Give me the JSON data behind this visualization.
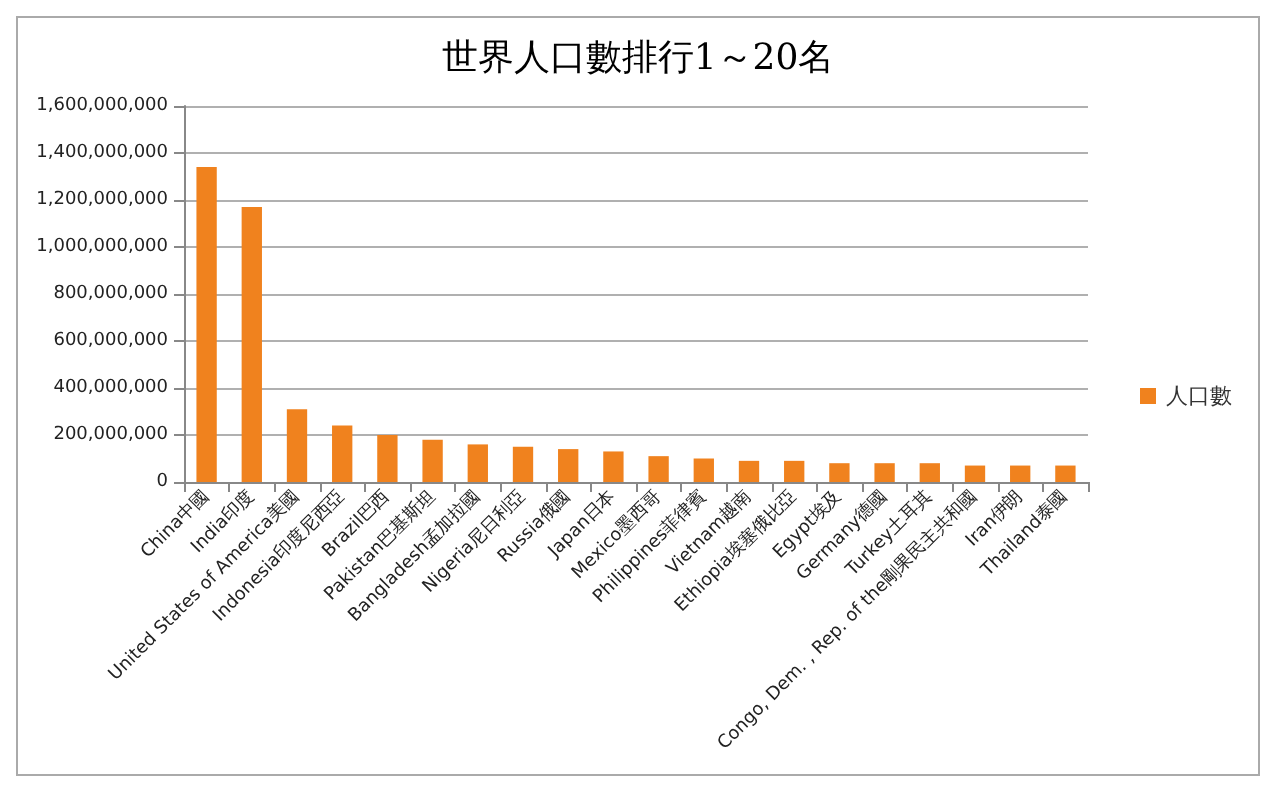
{
  "chart_data": {
    "type": "bar",
    "title": "世界人口數排行1～20名",
    "categories": [
      "China中國",
      "India印度",
      "United States of America美國",
      "Indonesia印度尼西亞",
      "Brazil巴西",
      "Pakistan巴基斯坦",
      "Bangladesh孟加拉國",
      "Nigeria尼日利亞",
      "Russia俄國",
      "Japan日本",
      "Mexico墨西哥",
      "Philippines菲律賓",
      "Vietnam越南",
      "Ethiopia埃塞俄比亞",
      "Egypt埃及",
      "Germany德國",
      "Turkey土耳其",
      "Congo, Dem. , Rep. of the剛果民主共和國",
      "Iran伊朗",
      "Thailand泰國"
    ],
    "series": [
      {
        "name": "人口數",
        "color": "#f0821e",
        "values": [
          1340000000,
          1170000000,
          310000000,
          240000000,
          200000000,
          180000000,
          160000000,
          150000000,
          140000000,
          130000000,
          110000000,
          100000000,
          90000000,
          90000000,
          80000000,
          80000000,
          80000000,
          70000000,
          70000000,
          70000000
        ]
      }
    ],
    "ylim": [
      0,
      1600000000
    ],
    "yticks": [
      0,
      {
        "value": 200000000,
        "label": "200,000,000"
      },
      {
        "value": 400000000,
        "label": "400,000,000"
      },
      {
        "value": 600000000,
        "label": "600,000,000"
      },
      {
        "value": 800000000,
        "label": "800,000,000"
      },
      {
        "value": 1000000000,
        "label": "1,000,000,000"
      },
      {
        "value": 1200000000,
        "label": "1,200,000,000"
      },
      {
        "value": 1400000000,
        "label": "1,400,000,000"
      },
      {
        "value": 1600000000,
        "label": "1,600,000,000"
      }
    ],
    "grid": "y",
    "legend": "right"
  }
}
